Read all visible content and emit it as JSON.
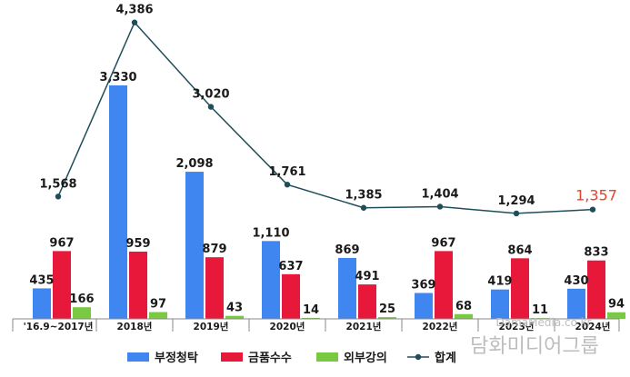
{
  "chart_data": {
    "type": "bar",
    "categories": [
      "'16.9~2017년",
      "2018년",
      "2019년",
      "2020년",
      "2021년",
      "2022년",
      "2023년",
      "2024년"
    ],
    "series": [
      {
        "name": "부정청탁",
        "values": [
          435,
          3330,
          2098,
          1110,
          869,
          369,
          419,
          430
        ],
        "color": "#3f86f0"
      },
      {
        "name": "금품수수",
        "values": [
          967,
          959,
          879,
          637,
          491,
          967,
          864,
          833
        ],
        "color": "#e8183a"
      },
      {
        "name": "외부강의",
        "values": [
          166,
          97,
          43,
          14,
          25,
          68,
          11,
          94
        ],
        "color": "#7ac943"
      }
    ],
    "line_series": {
      "name": "합계",
      "values": [
        1568,
        4386,
        3020,
        1761,
        1385,
        1404,
        1294,
        1357
      ],
      "color": "#1f4e5a",
      "highlight_last_color": "#e8412c"
    },
    "grid": false,
    "legend_position": "bottom"
  },
  "watermark": {
    "url": "DamaMedia.co.kr",
    "name": "담화미디어그룹"
  }
}
